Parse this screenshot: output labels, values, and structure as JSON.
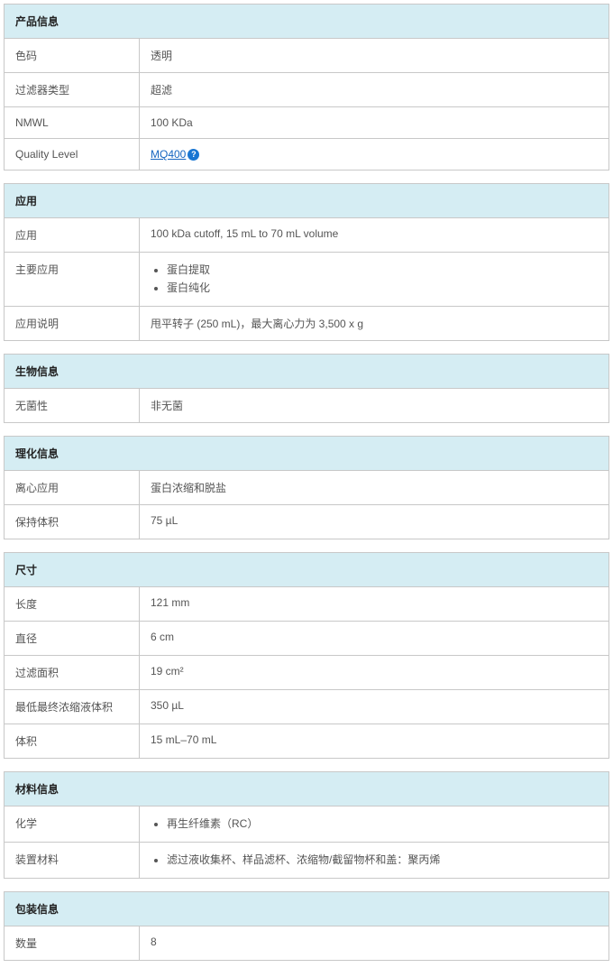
{
  "sections": [
    {
      "title": "产品信息",
      "rows": [
        {
          "label": "色码",
          "type": "text",
          "value": "透明"
        },
        {
          "label": "过滤器类型",
          "type": "text",
          "value": "超滤"
        },
        {
          "label": "NMWL",
          "type": "text",
          "value": "100 KDa"
        },
        {
          "label": "Quality Level",
          "type": "link_info",
          "value": "MQ400"
        }
      ]
    },
    {
      "title": "应用",
      "rows": [
        {
          "label": "应用",
          "type": "text",
          "value": "100 kDa cutoff, 15 mL to 70 mL volume"
        },
        {
          "label": "主要应用",
          "type": "list",
          "items": [
            "蛋白提取",
            "蛋白纯化"
          ]
        },
        {
          "label": "应用说明",
          "type": "text",
          "value": "甩平转子 (250 mL)，最大离心力为 3,500 x g"
        }
      ]
    },
    {
      "title": "生物信息",
      "rows": [
        {
          "label": "无菌性",
          "type": "text",
          "value": "非无菌"
        }
      ]
    },
    {
      "title": "理化信息",
      "rows": [
        {
          "label": "离心应用",
          "type": "text",
          "value": "蛋白浓缩和脱盐"
        },
        {
          "label": "保持体积",
          "type": "text",
          "value": "75 µL"
        }
      ]
    },
    {
      "title": "尺寸",
      "rows": [
        {
          "label": "长度",
          "type": "text",
          "value": "121 mm"
        },
        {
          "label": "直径",
          "type": "text",
          "value": "6 cm"
        },
        {
          "label": "过滤面积",
          "type": "text",
          "value": "19 cm²"
        },
        {
          "label": "最低最终浓缩液体积",
          "type": "text",
          "value": "350 µL"
        },
        {
          "label": "体积",
          "type": "text",
          "value": "15 mL–70 mL"
        }
      ]
    },
    {
      "title": "材料信息",
      "rows": [
        {
          "label": "化学",
          "type": "list",
          "items": [
            "再生纤维素（RC）"
          ]
        },
        {
          "label": "装置材料",
          "type": "list",
          "items": [
            "滤过液收集杯、样品滤杯、浓缩物/截留物杯和盖：聚丙烯"
          ]
        }
      ]
    },
    {
      "title": "包装信息",
      "rows": [
        {
          "label": "数量",
          "type": "text",
          "value": "8"
        }
      ]
    }
  ],
  "colors": {
    "header_bg": "#d5edf3",
    "border": "#c8c8c8",
    "text": "#555555",
    "link": "#1565c0",
    "info_bg": "#1976d2"
  }
}
